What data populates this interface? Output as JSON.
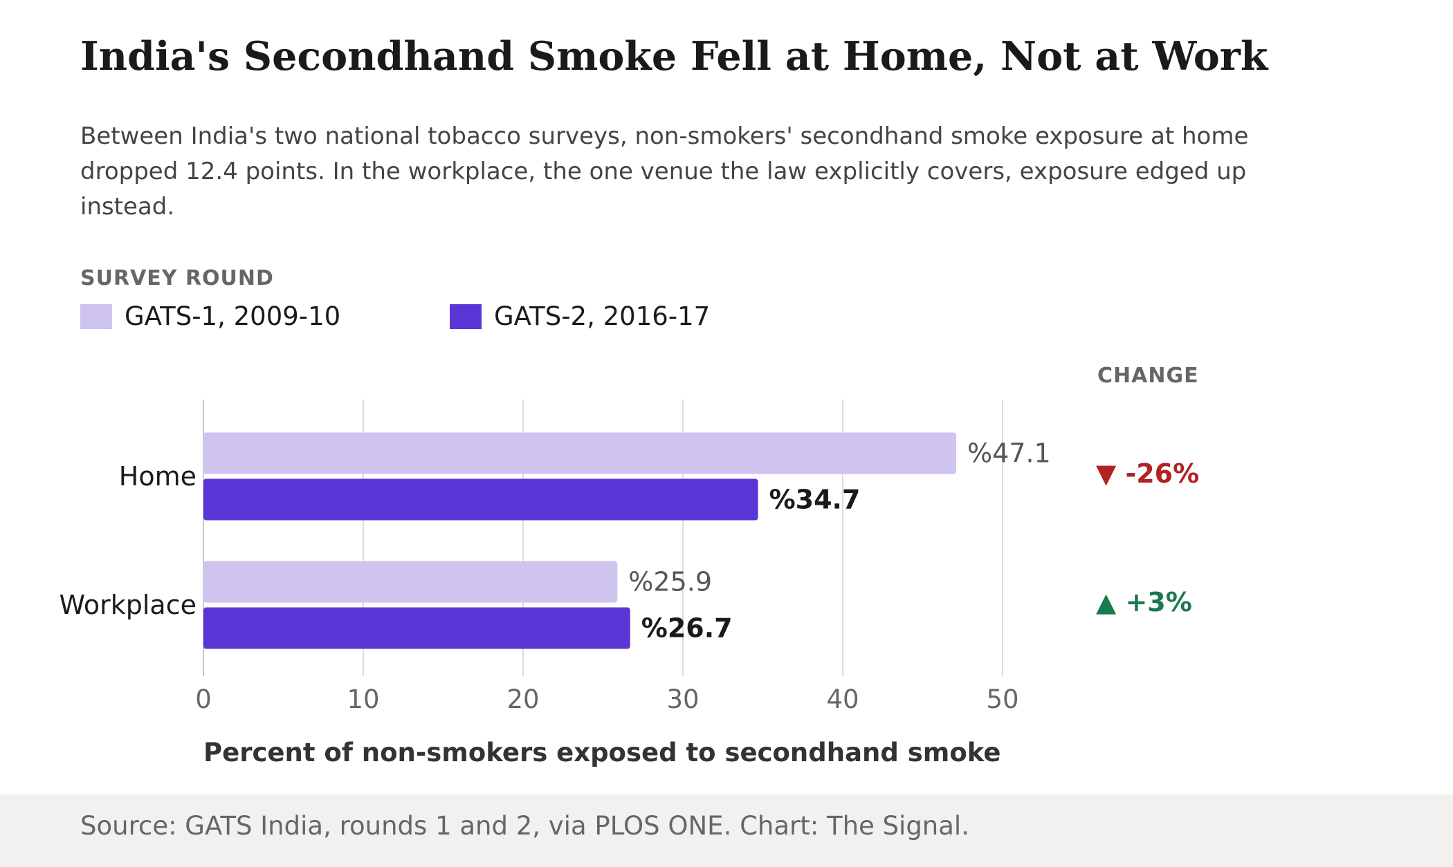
{
  "title": "India's Secondhand Smoke Fell at Home, Not at Work",
  "subtitle": "Between India's two national tobacco surveys, non-smokers' secondhand smoke exposure at home dropped 12.4 points. In the workplace, the one venue the law explicitly covers, exposure edged up instead.",
  "legend": {
    "title": "SURVEY ROUND",
    "items": [
      {
        "label": "GATS-1, 2009-10",
        "color": "#cfc3f0"
      },
      {
        "label": "GATS-2, 2016-17",
        "color": "#5b35d5"
      }
    ]
  },
  "change": {
    "header": "CHANGE",
    "values": [
      {
        "text": "▼ -26%",
        "color": "#b22222"
      },
      {
        "text": "▲ +3%",
        "color": "#1a7a4c"
      }
    ]
  },
  "chart_data": {
    "type": "bar",
    "orientation": "horizontal",
    "categories": [
      "Home",
      "Workplace"
    ],
    "series": [
      {
        "name": "GATS-1, 2009-10",
        "values": [
          47.1,
          25.9
        ],
        "labels": [
          "%47.1",
          "%25.9"
        ],
        "color": "#cfc3f0"
      },
      {
        "name": "GATS-2, 2016-17",
        "values": [
          34.7,
          26.7
        ],
        "labels": [
          "%34.7",
          "%26.7"
        ],
        "color": "#5b35d5"
      }
    ],
    "xlabel": "Percent of non-smokers exposed to secondhand smoke",
    "xlim": [
      0,
      50
    ],
    "xticks": [
      "0",
      "10",
      "20",
      "30",
      "40",
      "50"
    ],
    "grid": true
  },
  "footer": {
    "source": "Source: GATS India, rounds 1 and 2, via PLOS ONE. Chart: The Signal."
  }
}
